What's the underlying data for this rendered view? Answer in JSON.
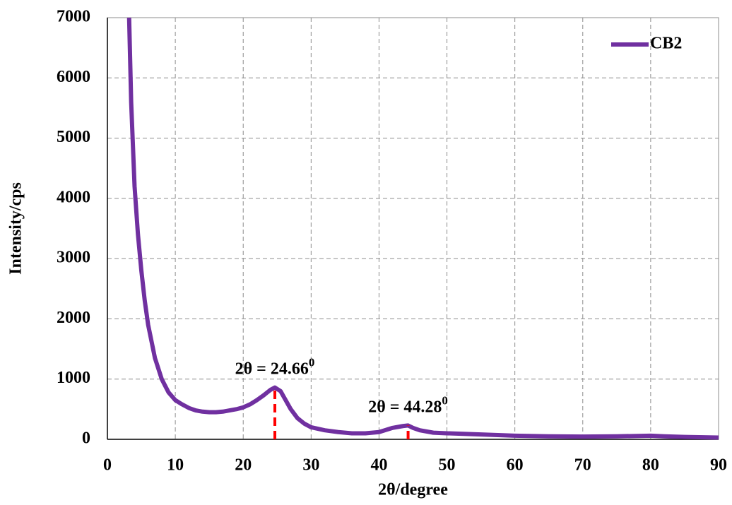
{
  "chart_data": {
    "type": "line",
    "x_label": "2θ/degree",
    "y_label": "Intensity/cps",
    "xlim": [
      0,
      90
    ],
    "ylim": [
      0,
      7000
    ],
    "xticks": [
      0,
      10,
      20,
      30,
      40,
      50,
      60,
      70,
      80,
      90
    ],
    "yticks": [
      0,
      1000,
      2000,
      3000,
      4000,
      5000,
      6000,
      7000
    ],
    "grid": true,
    "legend": "upper right",
    "series": [
      {
        "name": "CB2",
        "color": "#7030a0",
        "x": [
          3.2,
          3.5,
          4,
          4.5,
          5,
          5.5,
          6,
          7,
          8,
          9,
          10,
          11,
          12,
          13,
          14,
          15,
          16,
          17,
          18,
          19,
          20,
          21,
          22,
          23,
          24,
          24.66,
          25.5,
          26,
          27,
          28,
          29,
          30,
          32,
          34,
          36,
          38,
          40,
          42,
          43.5,
          44.28,
          45,
          46,
          48,
          50,
          55,
          60,
          65,
          70,
          75,
          80,
          82,
          85,
          90
        ],
        "values": [
          7000,
          5600,
          4200,
          3400,
          2800,
          2300,
          1900,
          1350,
          1000,
          780,
          650,
          580,
          520,
          480,
          460,
          450,
          450,
          460,
          480,
          500,
          530,
          580,
          650,
          730,
          820,
          860,
          800,
          700,
          500,
          350,
          260,
          200,
          150,
          120,
          100,
          100,
          120,
          190,
          220,
          230,
          190,
          150,
          110,
          100,
          80,
          60,
          50,
          45,
          50,
          60,
          50,
          40,
          30
        ]
      }
    ],
    "annotations": [
      {
        "text": "2θ = 24.66",
        "sup": "0",
        "x": 24.66,
        "y": 860,
        "color": "#ff0000"
      },
      {
        "text": "2θ = 44.28",
        "sup": "0",
        "x": 44.28,
        "y": 230,
        "color": "#ff0000"
      }
    ]
  }
}
